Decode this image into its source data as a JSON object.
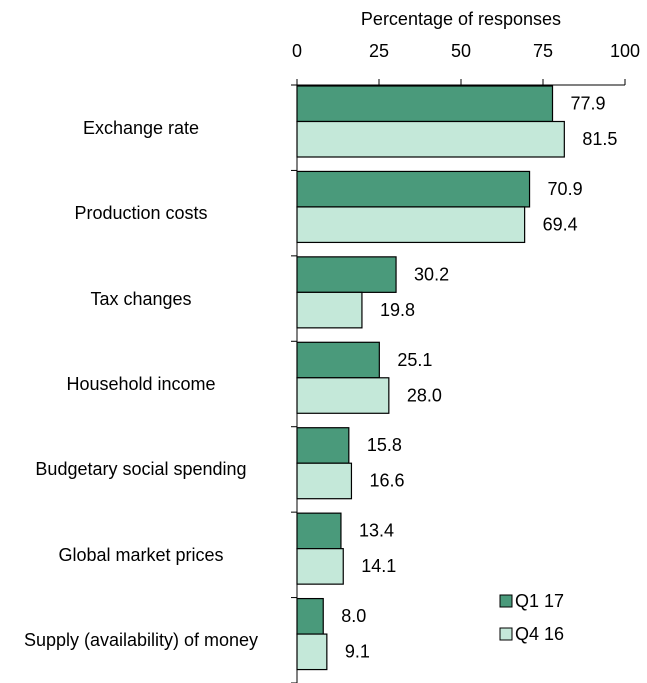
{
  "chart_data": {
    "type": "barh",
    "xlabel": "Percentage of responses",
    "categories": [
      "Exchange rate",
      "Production costs",
      "Tax changes",
      "Household income",
      "Budgetary social spending",
      "Global market prices",
      "Supply (availability) of money"
    ],
    "series": [
      {
        "name": "Q1 17",
        "color": "#4a9a7b",
        "values": [
          77.9,
          70.9,
          30.2,
          25.1,
          15.8,
          13.4,
          8.0
        ],
        "value_labels": [
          "77.9",
          "70.9",
          "30.2",
          "25.1",
          "15.8",
          "13.4",
          "8.0"
        ]
      },
      {
        "name": "Q4 16",
        "color": "#c4e8d9",
        "values": [
          81.5,
          69.4,
          19.8,
          28.0,
          16.6,
          14.1,
          9.1
        ],
        "value_labels": [
          "81.5",
          "69.4",
          "19.8",
          "28.0",
          "16.6",
          "14.1",
          "9.1"
        ]
      }
    ],
    "xlim": [
      0,
      100
    ],
    "xticks": [
      0,
      25,
      50,
      75,
      100
    ],
    "legend": "lower right"
  }
}
